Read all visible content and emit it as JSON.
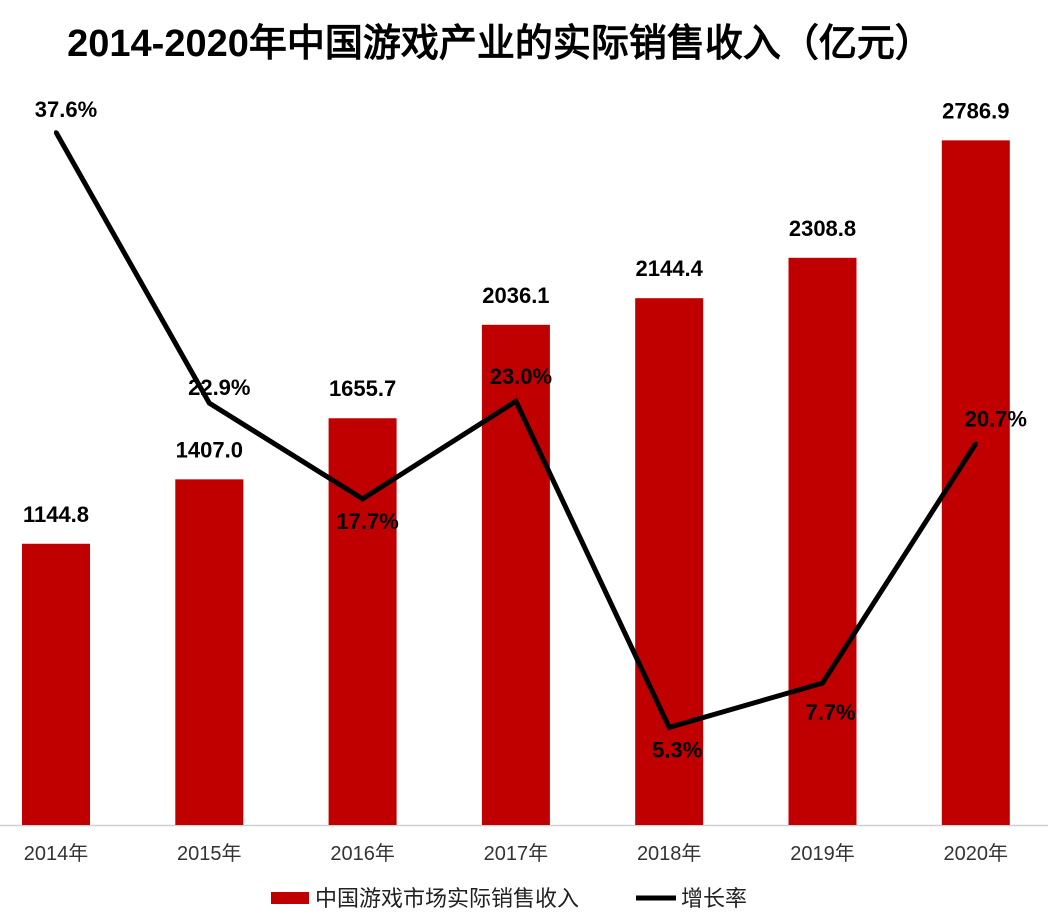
{
  "chart_data": {
    "type": "bar",
    "title": "2014-2020年中国游戏产业的实际销售收入（亿元）",
    "categories": [
      "2014年",
      "2015年",
      "2016年",
      "2017年",
      "2018年",
      "2019年",
      "2020年"
    ],
    "series": [
      {
        "name": "中国游戏市场实际销售收入",
        "type": "bar",
        "axis": "primary",
        "color": "#C00000",
        "values": [
          1144.8,
          1407.0,
          1655.7,
          2036.1,
          2144.4,
          2308.8,
          2786.9
        ],
        "labels": [
          "1144.8",
          "1407.0",
          "1655.7",
          "2036.1",
          "2144.4",
          "2308.8",
          "2786.9"
        ]
      },
      {
        "name": "增长率",
        "type": "line",
        "axis": "secondary",
        "color": "#000000",
        "values": [
          37.6,
          22.9,
          17.7,
          23.0,
          5.3,
          7.7,
          20.7
        ],
        "labels": [
          "37.6%",
          "22.9%",
          "17.7%",
          "23.0%",
          "5.3%",
          "7.7%",
          "20.7%"
        ]
      }
    ],
    "ylim": [
      0,
      3000
    ],
    "y2lim": [
      0,
      40
    ],
    "grid": false,
    "legend": "bottom"
  }
}
